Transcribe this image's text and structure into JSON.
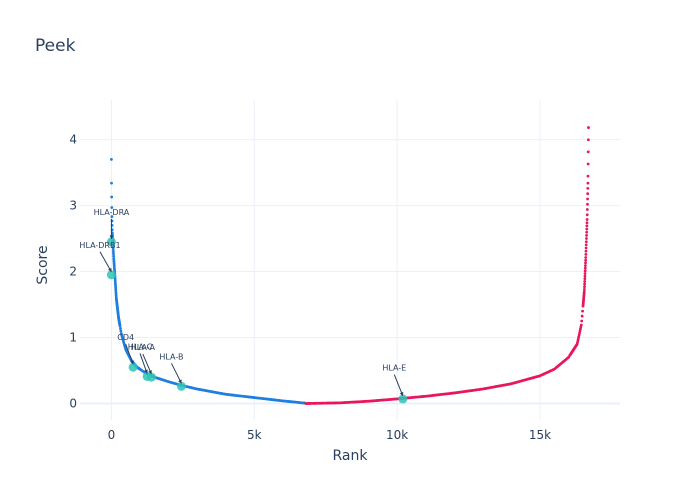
{
  "chart_data": {
    "type": "scatter",
    "title": "Peek",
    "xlabel": "Rank",
    "ylabel": "Score",
    "xlim": [
      -1100,
      17800
    ],
    "ylim": [
      -0.25,
      4.6
    ],
    "x_ticks": [
      {
        "value": 0,
        "label": "0"
      },
      {
        "value": 5000,
        "label": "5k"
      },
      {
        "value": 10000,
        "label": "10k"
      },
      {
        "value": 15000,
        "label": "15k"
      }
    ],
    "y_ticks": [
      {
        "value": 0,
        "label": "0"
      },
      {
        "value": 1,
        "label": "1"
      },
      {
        "value": 2,
        "label": "2"
      },
      {
        "value": 3,
        "label": "3"
      },
      {
        "value": 4,
        "label": "4"
      }
    ],
    "grid": true,
    "series": [
      {
        "color": "#1f7fe0",
        "curve": [
          [
            0,
            3.7
          ],
          [
            5,
            3.25
          ],
          [
            15,
            2.85
          ],
          [
            30,
            2.6
          ],
          [
            50,
            2.45
          ],
          [
            80,
            2.2
          ],
          [
            120,
            1.95
          ],
          [
            170,
            1.6
          ],
          [
            250,
            1.3
          ],
          [
            350,
            1.05
          ],
          [
            500,
            0.82
          ],
          [
            700,
            0.65
          ],
          [
            900,
            0.55
          ],
          [
            1200,
            0.46
          ],
          [
            1500,
            0.4
          ],
          [
            2000,
            0.33
          ],
          [
            2500,
            0.27
          ],
          [
            3000,
            0.22
          ],
          [
            4000,
            0.14
          ],
          [
            5000,
            0.09
          ],
          [
            6000,
            0.04
          ],
          [
            6800,
            0.005
          ]
        ]
      },
      {
        "color": "#e8175d",
        "curve": [
          [
            6800,
            0.0
          ],
          [
            8000,
            0.01
          ],
          [
            9000,
            0.035
          ],
          [
            10000,
            0.07
          ],
          [
            11000,
            0.11
          ],
          [
            12000,
            0.16
          ],
          [
            13000,
            0.22
          ],
          [
            14000,
            0.3
          ],
          [
            15000,
            0.42
          ],
          [
            15500,
            0.52
          ],
          [
            16000,
            0.7
          ],
          [
            16300,
            0.9
          ],
          [
            16450,
            1.2
          ],
          [
            16550,
            1.7
          ],
          [
            16600,
            2.2
          ],
          [
            16650,
            2.8
          ],
          [
            16680,
            3.4
          ],
          [
            16700,
            4.32
          ]
        ]
      }
    ],
    "highlights": [
      {
        "label": "HLA-DRA",
        "x": 0,
        "y": 2.45,
        "label_x": 0,
        "label_y": 2.86
      },
      {
        "label": "HLA-DRB1",
        "x": 0,
        "y": 1.95,
        "label_x": -400,
        "label_y": 2.36
      },
      {
        "label": "CD4",
        "x": 760,
        "y": 0.55,
        "label_x": 500,
        "label_y": 0.96
      },
      {
        "label": "HLA-C",
        "x": 1250,
        "y": 0.41,
        "label_x": 1000,
        "label_y": 0.82
      },
      {
        "label": "HLA-A",
        "x": 1400,
        "y": 0.4,
        "label_x": 1100,
        "label_y": 0.81
      },
      {
        "label": "HLA-B",
        "x": 2450,
        "y": 0.26,
        "label_x": 2100,
        "label_y": 0.67
      },
      {
        "label": "HLA-E",
        "x": 10200,
        "y": 0.07,
        "label_x": 9900,
        "label_y": 0.5
      }
    ],
    "highlight_color": "#2ec4b6"
  }
}
